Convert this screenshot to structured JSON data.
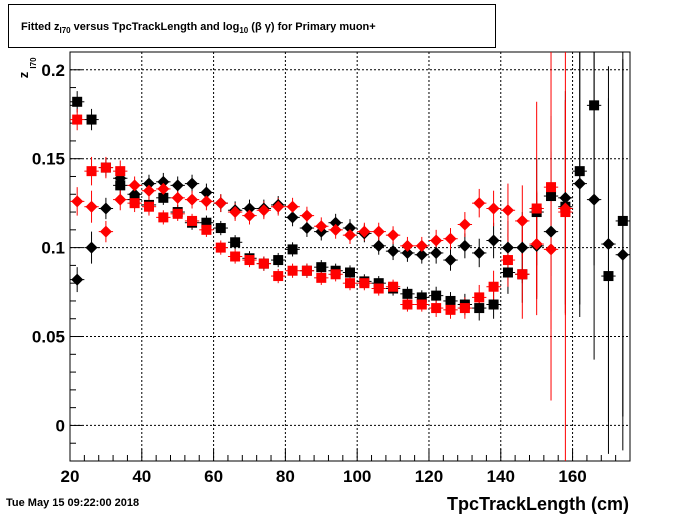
{
  "title_parts": {
    "pre": "Fitted  z",
    "sub1": "I70",
    "mid": "  versus TpcTrackLength and log",
    "sub2": "10",
    "post": " (β γ) for Primary muon+"
  },
  "timestamp": "Tue May 15 09:22:00 2018",
  "chart_data": {
    "type": "scatter",
    "title": "Fitted z_I70 versus TpcTrackLength and log10 (β γ) for Primary muon+",
    "xlabel": "TpcTrackLength (cm)",
    "ylabel": "z_I70",
    "xlim": [
      20,
      176
    ],
    "ylim": [
      -0.02,
      0.21
    ],
    "xticks": [
      20,
      40,
      60,
      80,
      100,
      120,
      140,
      160
    ],
    "xtick_labels": [
      "20",
      "40",
      "60",
      "80",
      "100",
      "120",
      "140",
      "160"
    ],
    "yticks": [
      0,
      0.05,
      0.1,
      0.15,
      0.2
    ],
    "ytick_labels": [
      "0",
      "0.05",
      "0.1",
      "0.15",
      "0.2"
    ],
    "grid": true,
    "x": [
      22,
      26,
      30,
      34,
      38,
      42,
      46,
      50,
      54,
      58,
      62,
      66,
      70,
      74,
      78,
      82,
      86,
      90,
      94,
      98,
      102,
      106,
      110,
      114,
      118,
      122,
      126,
      130,
      134,
      138,
      142,
      146,
      150,
      154,
      158,
      162,
      166,
      170,
      174
    ],
    "series": [
      {
        "marker": "square",
        "color": "#000000",
        "values": [
          0.182,
          0.172,
          0.145,
          0.135,
          0.127,
          0.124,
          0.128,
          0.12,
          0.114,
          0.114,
          0.111,
          0.103,
          0.094,
          0.091,
          0.093,
          0.099,
          0.087,
          0.089,
          0.087,
          0.086,
          0.081,
          0.08,
          0.077,
          0.074,
          0.072,
          0.073,
          0.07,
          0.068,
          0.066,
          0.068,
          0.086,
          0.085,
          0.12,
          0.129,
          0.123,
          0.143,
          0.18,
          0.084,
          0.115
        ],
        "errors": [
          0.006,
          0.006,
          0.005,
          0.005,
          0.005,
          0.005,
          0.004,
          0.004,
          0.004,
          0.004,
          0.004,
          0.004,
          0.004,
          0.004,
          0.004,
          0.004,
          0.004,
          0.004,
          0.004,
          0.004,
          0.004,
          0.004,
          0.004,
          0.004,
          0.004,
          0.005,
          0.005,
          0.006,
          0.007,
          0.008,
          0.012,
          0.016,
          0.03,
          0.045,
          0.06,
          0.075,
          0.09,
          0.1,
          0.11
        ]
      },
      {
        "marker": "diamond",
        "color": "#000000",
        "values": [
          0.082,
          0.1,
          0.122,
          0.139,
          0.13,
          0.136,
          0.137,
          0.135,
          0.136,
          0.131,
          0.125,
          0.121,
          0.122,
          0.122,
          0.124,
          0.117,
          0.111,
          0.109,
          0.114,
          0.111,
          0.108,
          0.101,
          0.098,
          0.097,
          0.096,
          0.097,
          0.093,
          0.101,
          0.097,
          0.104,
          0.1,
          0.1,
          0.101,
          0.109,
          0.128,
          0.136,
          0.127,
          0.102,
          0.096
        ],
        "errors": [
          0.007,
          0.009,
          0.006,
          0.006,
          0.005,
          0.005,
          0.005,
          0.005,
          0.005,
          0.005,
          0.005,
          0.005,
          0.005,
          0.005,
          0.005,
          0.005,
          0.005,
          0.005,
          0.005,
          0.005,
          0.005,
          0.005,
          0.005,
          0.005,
          0.005,
          0.006,
          0.006,
          0.007,
          0.008,
          0.01,
          0.015,
          0.02,
          0.03,
          0.045,
          0.06,
          0.075,
          0.09,
          0.1,
          0.11
        ]
      },
      {
        "marker": "square",
        "color": "#ff0000",
        "values": [
          0.172,
          0.143,
          0.145,
          0.143,
          0.125,
          0.123,
          0.117,
          0.119,
          0.115,
          0.11,
          0.1,
          0.095,
          0.093,
          0.091,
          0.084,
          0.087,
          0.087,
          0.083,
          0.085,
          0.08,
          0.08,
          0.077,
          0.078,
          0.068,
          0.068,
          0.066,
          0.065,
          0.066,
          0.072,
          0.078,
          0.093,
          0.085,
          0.122,
          0.134,
          0.12
        ],
        "errors": [
          0.006,
          0.008,
          0.006,
          0.006,
          0.005,
          0.005,
          0.004,
          0.004,
          0.004,
          0.004,
          0.004,
          0.004,
          0.004,
          0.004,
          0.004,
          0.004,
          0.004,
          0.004,
          0.004,
          0.004,
          0.004,
          0.004,
          0.004,
          0.004,
          0.004,
          0.005,
          0.005,
          0.006,
          0.007,
          0.009,
          0.015,
          0.025,
          0.06,
          0.12,
          0.2
        ]
      },
      {
        "marker": "diamond",
        "color": "#ff0000",
        "values": [
          0.126,
          0.123,
          0.109,
          0.127,
          0.135,
          0.132,
          0.133,
          0.128,
          0.127,
          0.126,
          0.125,
          0.12,
          0.118,
          0.121,
          0.123,
          0.123,
          0.118,
          0.112,
          0.11,
          0.107,
          0.109,
          0.109,
          0.107,
          0.101,
          0.101,
          0.104,
          0.105,
          0.113,
          0.125,
          0.122,
          0.121,
          0.115,
          0.102,
          0.099,
          0.122
        ],
        "errors": [
          0.008,
          0.009,
          0.006,
          0.006,
          0.005,
          0.005,
          0.005,
          0.005,
          0.005,
          0.005,
          0.005,
          0.005,
          0.005,
          0.005,
          0.005,
          0.005,
          0.005,
          0.005,
          0.005,
          0.005,
          0.005,
          0.005,
          0.005,
          0.005,
          0.005,
          0.006,
          0.006,
          0.007,
          0.008,
          0.01,
          0.015,
          0.02,
          0.03,
          0.045,
          0.06
        ]
      }
    ]
  }
}
